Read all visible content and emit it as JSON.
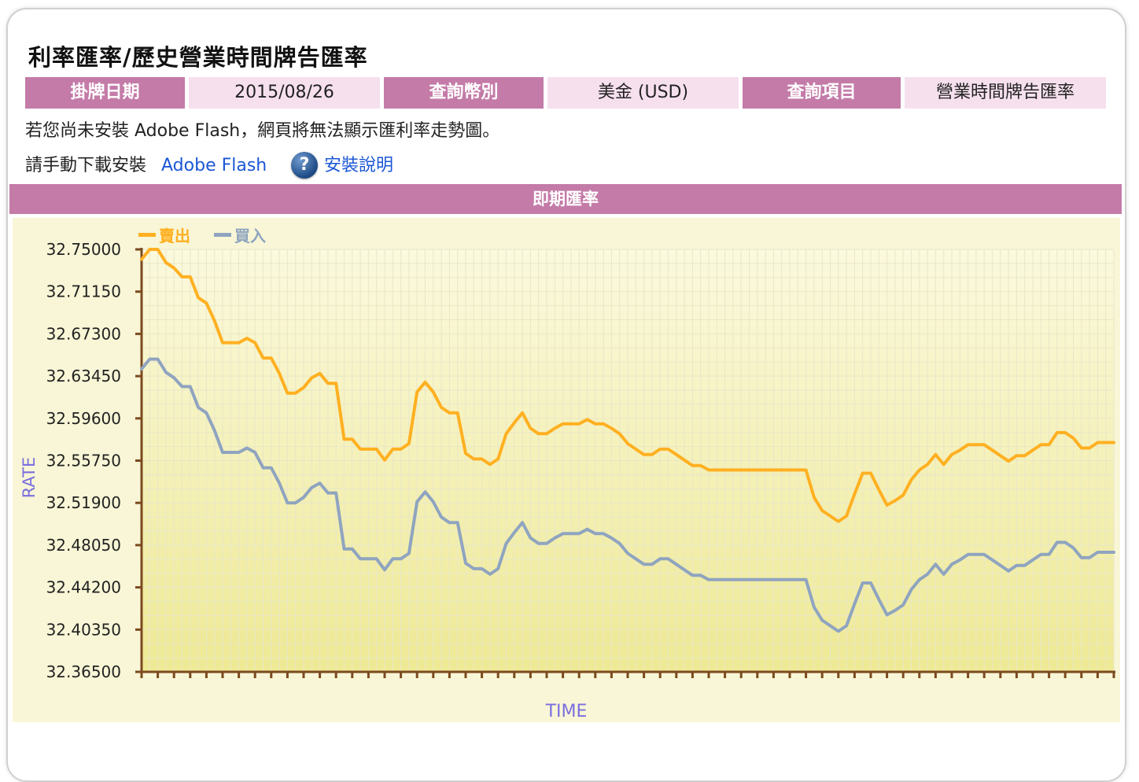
{
  "page": {
    "title": "利率匯率/歷史營業時間牌告匯率"
  },
  "info": {
    "date_label": "掛牌日期",
    "date_value": "2015/08/26",
    "currency_label": "查詢幣別",
    "currency_value": "美金 (USD)",
    "item_label": "查詢項目",
    "item_value": "營業時間牌告匯率"
  },
  "notice": {
    "line1": "若您尚未安裝 Adobe Flash，網頁將無法顯示匯利率走勢圖。",
    "line2_prefix": "請手動下載安裝",
    "flash_link": "Adobe Flash",
    "help_link": "安裝說明",
    "help_icon": "question-mark-icon"
  },
  "section": {
    "title": "即期匯率"
  },
  "colors": {
    "accent": "#c47ba8",
    "accent_light": "#f6e0ee",
    "sell": "#ffb021",
    "buy": "#8fa4bf",
    "link": "#1b57d6",
    "axis_title": "#7b6ee0"
  },
  "chart_data": {
    "type": "line",
    "xlabel": "TIME",
    "ylabel": "RATE",
    "ylim": [
      32.365,
      32.75
    ],
    "yticks": [
      "32.75000",
      "32.71150",
      "32.67300",
      "32.63450",
      "32.59600",
      "32.55750",
      "32.51900",
      "32.48050",
      "32.44200",
      "32.40350",
      "32.36500"
    ],
    "legend_position": "top-left",
    "grid": true,
    "series": [
      {
        "name": "賣出",
        "values": [
          32.741,
          32.75,
          32.75,
          32.738,
          32.733,
          32.725,
          32.725,
          32.706,
          32.701,
          32.685,
          32.665,
          32.665,
          32.665,
          32.669,
          32.665,
          32.651,
          32.651,
          32.637,
          32.619,
          32.619,
          32.624,
          32.633,
          32.637,
          32.628,
          32.628,
          32.577,
          32.577,
          32.568,
          32.568,
          32.568,
          32.558,
          32.568,
          32.568,
          32.573,
          32.62,
          32.629,
          32.62,
          32.606,
          32.601,
          32.601,
          32.564,
          32.559,
          32.559,
          32.554,
          32.559,
          32.582,
          32.592,
          32.601,
          32.587,
          32.582,
          32.582,
          32.587,
          32.591,
          32.591,
          32.591,
          32.595,
          32.591,
          32.591,
          32.587,
          32.582,
          32.573,
          32.568,
          32.563,
          32.563,
          32.568,
          32.568,
          32.563,
          32.558,
          32.553,
          32.553,
          32.549,
          32.549,
          32.549,
          32.549,
          32.549,
          32.549,
          32.549,
          32.549,
          32.549,
          32.549,
          32.549,
          32.549,
          32.549,
          32.524,
          32.512,
          32.507,
          32.502,
          32.507,
          32.527,
          32.546,
          32.546,
          32.531,
          32.517,
          32.521,
          32.526,
          32.54,
          32.549,
          32.554,
          32.563,
          32.554,
          32.563,
          32.567,
          32.572,
          32.572,
          32.572,
          32.567,
          32.562,
          32.557,
          32.562,
          32.562,
          32.567,
          32.572,
          32.572,
          32.583,
          32.583,
          32.578,
          32.569,
          32.569,
          32.574,
          32.574,
          32.574
        ]
      },
      {
        "name": "買入",
        "values": [
          32.641,
          32.65,
          32.65,
          32.638,
          32.633,
          32.625,
          32.625,
          32.606,
          32.601,
          32.585,
          32.565,
          32.565,
          32.565,
          32.569,
          32.565,
          32.551,
          32.551,
          32.537,
          32.519,
          32.519,
          32.524,
          32.533,
          32.537,
          32.528,
          32.528,
          32.477,
          32.477,
          32.468,
          32.468,
          32.468,
          32.458,
          32.468,
          32.468,
          32.473,
          32.52,
          32.529,
          32.52,
          32.506,
          32.501,
          32.501,
          32.464,
          32.459,
          32.459,
          32.454,
          32.459,
          32.482,
          32.492,
          32.501,
          32.487,
          32.482,
          32.482,
          32.487,
          32.491,
          32.491,
          32.491,
          32.495,
          32.491,
          32.491,
          32.487,
          32.482,
          32.473,
          32.468,
          32.463,
          32.463,
          32.468,
          32.468,
          32.463,
          32.458,
          32.453,
          32.453,
          32.449,
          32.449,
          32.449,
          32.449,
          32.449,
          32.449,
          32.449,
          32.449,
          32.449,
          32.449,
          32.449,
          32.449,
          32.449,
          32.424,
          32.412,
          32.407,
          32.402,
          32.407,
          32.427,
          32.446,
          32.446,
          32.431,
          32.417,
          32.421,
          32.426,
          32.44,
          32.449,
          32.454,
          32.463,
          32.454,
          32.463,
          32.467,
          32.472,
          32.472,
          32.472,
          32.467,
          32.462,
          32.457,
          32.462,
          32.462,
          32.467,
          32.472,
          32.472,
          32.483,
          32.483,
          32.478,
          32.469,
          32.469,
          32.474,
          32.474,
          32.474
        ]
      }
    ]
  }
}
